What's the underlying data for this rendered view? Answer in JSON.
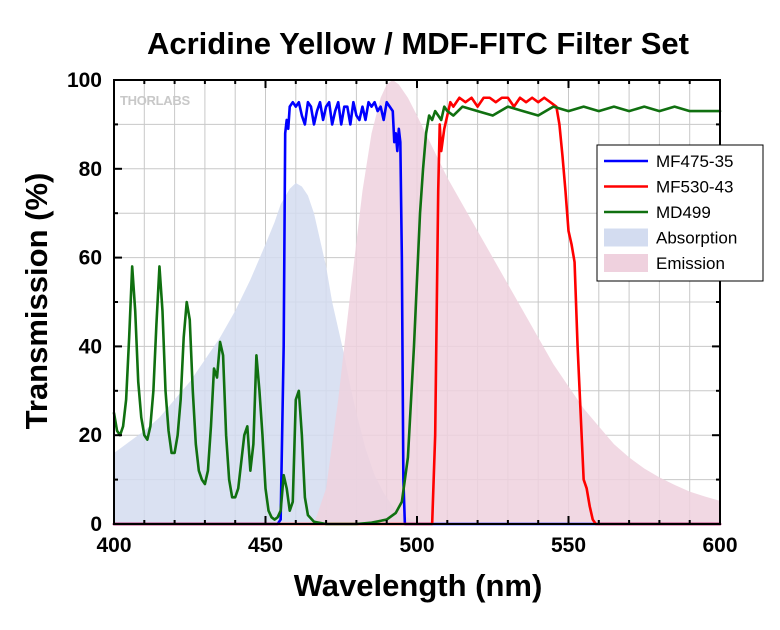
{
  "chart_data": {
    "type": "line",
    "title": "Acridine Yellow / MDF-FITC Filter Set",
    "xlabel": "Wavelength (nm)",
    "ylabel": "Transmission (%)",
    "xlim": [
      400,
      600
    ],
    "ylim": [
      0,
      100
    ],
    "x_ticks": [
      "400",
      "450",
      "500",
      "550",
      "600"
    ],
    "y_ticks": [
      "0",
      "20",
      "40",
      "60",
      "80",
      "100"
    ],
    "grid": true,
    "legend_position": "right",
    "watermark": "THORLABS",
    "colors": {
      "MF475-35": "#0000ff",
      "MF530-43": "#ff0000",
      "MD499": "#107010",
      "Absorption": "#d3dcf0",
      "Emission": "#efd1de"
    },
    "series": [
      {
        "name": "Absorption",
        "kind": "area",
        "x": [
          400,
          405,
          410,
          415,
          420,
          425,
          430,
          435,
          440,
          445,
          450,
          453,
          455,
          458,
          460,
          462,
          464,
          466,
          468,
          470,
          472,
          474,
          476,
          478,
          480,
          483,
          486,
          489,
          492,
          495,
          498,
          500,
          503
        ],
        "y": [
          16,
          18.5,
          21,
          24,
          28,
          32,
          37,
          42,
          48,
          55,
          63,
          68,
          72,
          75.5,
          76.8,
          76,
          74,
          70,
          64,
          58,
          50,
          44,
          38,
          31,
          25,
          17,
          11,
          7,
          4,
          2.2,
          1,
          0.5,
          0
        ]
      },
      {
        "name": "Emission",
        "kind": "area",
        "x": [
          466,
          470,
          474,
          478,
          482,
          485,
          488,
          490,
          492,
          494,
          497,
          500,
          505,
          510,
          515,
          520,
          525,
          530,
          535,
          540,
          545,
          550,
          555,
          560,
          565,
          570,
          575,
          580,
          585,
          590,
          595,
          600
        ],
        "y": [
          0,
          8,
          28,
          52,
          75,
          88,
          96,
          99,
          100,
          99,
          96,
          92,
          85,
          78,
          72,
          66,
          60,
          54,
          48,
          42,
          36,
          31,
          26,
          22,
          18,
          15,
          12.5,
          10.5,
          8.8,
          7.3,
          6.2,
          5.2
        ]
      },
      {
        "name": "MF475-35",
        "kind": "line",
        "x": [
          400,
          454,
          455,
          456,
          456.5,
          457,
          457.5,
          458,
          459,
          460,
          461,
          462,
          463,
          464,
          465,
          466,
          467,
          468,
          469,
          470,
          471,
          472,
          473,
          474,
          475,
          476,
          477,
          478,
          479,
          480,
          481,
          482,
          483,
          484,
          485,
          486,
          487,
          488,
          489,
          490,
          491,
          492,
          492.5,
          493,
          493.5,
          494,
          494.5,
          495,
          495.5,
          496,
          600
        ],
        "y": [
          0,
          0,
          1,
          40,
          88,
          91,
          89,
          94,
          95,
          94,
          95,
          92,
          90,
          95,
          94,
          90,
          93,
          95,
          91,
          94,
          95,
          90,
          93,
          95,
          90,
          94,
          94,
          90,
          95,
          92,
          91,
          94,
          91,
          95,
          94,
          95,
          93,
          94,
          91,
          95,
          94,
          93,
          86,
          88,
          84,
          89,
          86,
          60,
          10,
          0,
          0
        ]
      },
      {
        "name": "MF530-43",
        "kind": "line",
        "x": [
          400,
          505,
          506,
          507,
          507.5,
          508,
          509,
          510,
          511,
          512,
          514,
          516,
          518,
          520,
          522,
          524,
          526,
          528,
          530,
          532,
          534,
          536,
          538,
          540,
          542,
          544,
          546,
          547,
          548,
          549,
          550,
          551,
          552,
          553,
          554,
          555,
          556,
          557,
          558,
          559,
          600
        ],
        "y": [
          0,
          0,
          20,
          75,
          90,
          84,
          89,
          92,
          95,
          94,
          96,
          95,
          96,
          94,
          96,
          96,
          95,
          96,
          96,
          94,
          96,
          95,
          96,
          95,
          96,
          95,
          94,
          90,
          83,
          75,
          66,
          63,
          59,
          40,
          25,
          10,
          8,
          4,
          1,
          0,
          0
        ]
      },
      {
        "name": "MD499",
        "kind": "line",
        "x": [
          400,
          401,
          402,
          403,
          404,
          405,
          406,
          407,
          408,
          409,
          410,
          411,
          412,
          413,
          414,
          415,
          416,
          417,
          418,
          419,
          420,
          421,
          422,
          423,
          424,
          425,
          426,
          427,
          428,
          429,
          430,
          431,
          432,
          433,
          434,
          435,
          436,
          437,
          438,
          439,
          440,
          441,
          442,
          443,
          444,
          445,
          446,
          447,
          448,
          449,
          450,
          451,
          452,
          453,
          454,
          455,
          456,
          457,
          458,
          459,
          460,
          461,
          462,
          463,
          464,
          466,
          470,
          475,
          480,
          485,
          490,
          493,
          495,
          497,
          499,
          500,
          501,
          502,
          503,
          504,
          505,
          506,
          507,
          508,
          509,
          510,
          512,
          515,
          520,
          525,
          530,
          535,
          540,
          545,
          550,
          555,
          560,
          565,
          570,
          575,
          580,
          585,
          590,
          595,
          600
        ],
        "y": [
          25,
          21,
          20,
          22,
          28,
          42,
          58,
          48,
          32,
          24,
          20,
          19,
          22,
          30,
          45,
          58,
          48,
          30,
          21,
          16,
          16,
          20,
          28,
          42,
          50,
          46,
          30,
          18,
          12,
          10,
          9,
          12,
          22,
          35,
          33,
          41,
          38,
          20,
          10,
          6,
          6,
          8,
          14,
          20,
          22,
          12,
          18,
          38,
          30,
          20,
          8,
          3,
          1.5,
          1,
          1.5,
          3,
          11,
          8,
          3,
          5,
          28,
          30,
          20,
          6,
          2,
          0.5,
          0,
          0,
          0,
          0.3,
          1,
          2.5,
          5,
          15,
          40,
          55,
          70,
          80,
          88,
          92,
          91,
          93,
          92,
          91,
          94,
          93,
          92,
          94,
          93,
          92,
          94,
          93,
          92,
          94,
          93,
          94,
          93,
          94,
          93,
          94,
          93,
          94,
          93,
          93,
          93
        ]
      }
    ],
    "legend": [
      {
        "label": "MF475-35",
        "kind": "line"
      },
      {
        "label": "MF530-43",
        "kind": "line"
      },
      {
        "label": "MD499",
        "kind": "line"
      },
      {
        "label": "Absorption",
        "kind": "area"
      },
      {
        "label": "Emission",
        "kind": "area"
      }
    ]
  }
}
